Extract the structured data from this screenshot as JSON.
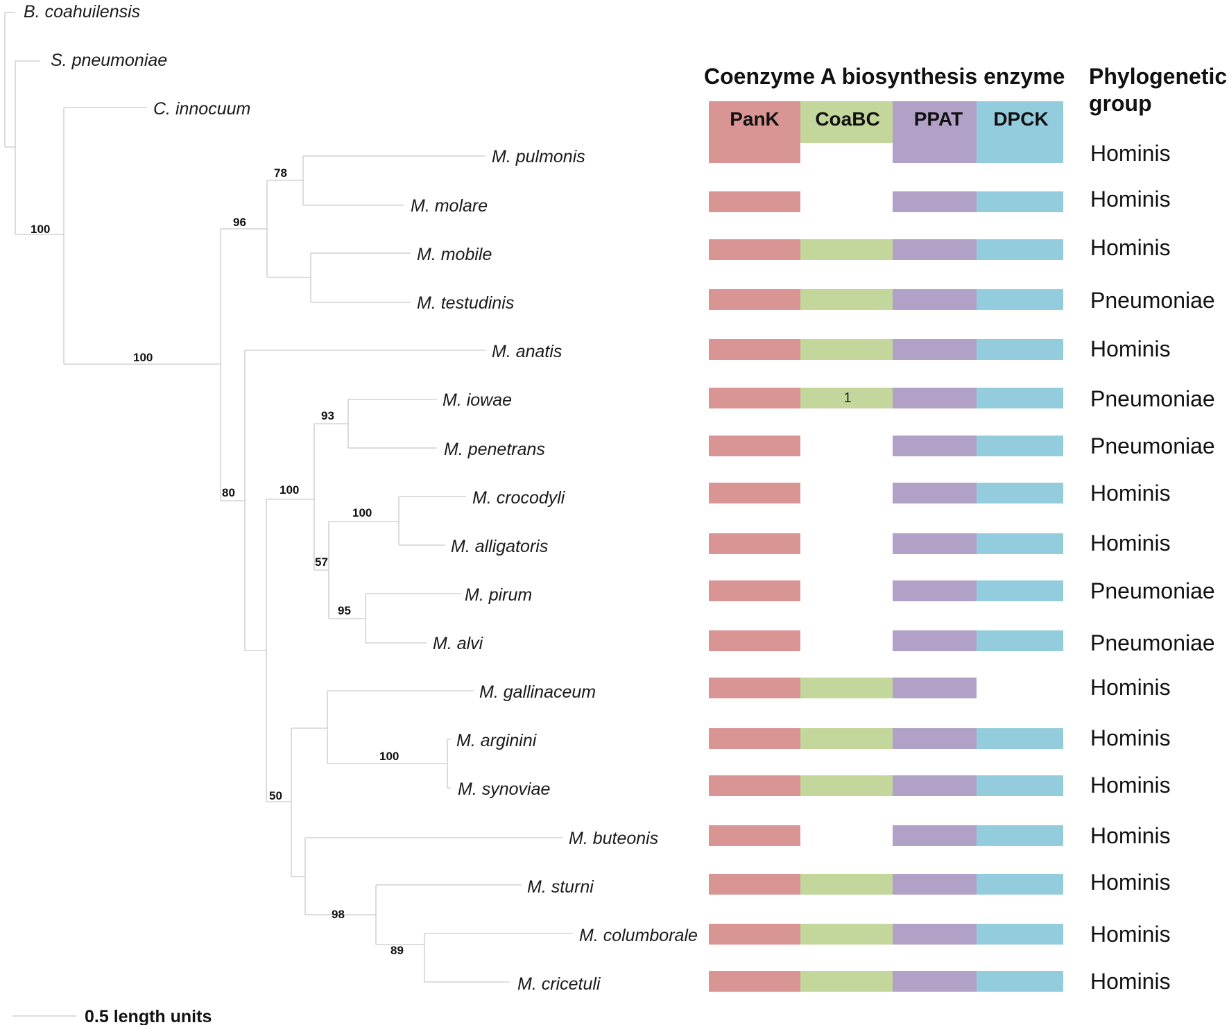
{
  "panel_title": "Coenzyme A biosynthesis enzyme",
  "group_header": [
    "Phylogenetic",
    "group"
  ],
  "enzymes": [
    "PanK",
    "CoaBC",
    "PPAT",
    "DPCK"
  ],
  "enzyme_colors": {
    "PanK": "#d99594",
    "CoaBC": "#c3d69b",
    "PPAT": "#b2a1c7",
    "DPCK": "#93cddd"
  },
  "taxa": [
    {
      "name": "B. coahuilensis"
    },
    {
      "name": "S. pneumoniae"
    },
    {
      "name": "C. innocuum"
    },
    {
      "name": "M. pulmonis",
      "enzymes": [
        true,
        false,
        true,
        true
      ],
      "group": "Hominis"
    },
    {
      "name": "M. molare",
      "enzymes": [
        true,
        false,
        true,
        true
      ],
      "group": "Hominis"
    },
    {
      "name": "M. mobile",
      "enzymes": [
        true,
        true,
        true,
        true
      ],
      "group": "Hominis"
    },
    {
      "name": "M. testudinis",
      "enzymes": [
        true,
        true,
        true,
        true
      ],
      "group": "Pneumoniae"
    },
    {
      "name": "M. anatis",
      "enzymes": [
        true,
        true,
        true,
        true
      ],
      "group": "Hominis"
    },
    {
      "name": "M. iowae",
      "enzymes": [
        true,
        true,
        true,
        true
      ],
      "group": "Pneumoniae",
      "note": "1"
    },
    {
      "name": "M. penetrans",
      "enzymes": [
        true,
        false,
        true,
        true
      ],
      "group": "Pneumoniae"
    },
    {
      "name": "M. crocodyli",
      "enzymes": [
        true,
        false,
        true,
        true
      ],
      "group": "Hominis"
    },
    {
      "name": "M. alligatoris",
      "enzymes": [
        true,
        false,
        true,
        true
      ],
      "group": "Hominis"
    },
    {
      "name": "M. pirum",
      "enzymes": [
        true,
        false,
        true,
        true
      ],
      "group": "Pneumoniae"
    },
    {
      "name": "M. alvi",
      "enzymes": [
        true,
        false,
        true,
        true
      ],
      "group": "Pneumoniae"
    },
    {
      "name": "M. gallinaceum",
      "enzymes": [
        true,
        true,
        true,
        false
      ],
      "group": "Hominis"
    },
    {
      "name": "M. arginini",
      "enzymes": [
        true,
        true,
        true,
        true
      ],
      "group": "Hominis"
    },
    {
      "name": "M. synoviae",
      "enzymes": [
        true,
        true,
        true,
        true
      ],
      "group": "Hominis"
    },
    {
      "name": "M. buteonis",
      "enzymes": [
        true,
        false,
        true,
        true
      ],
      "group": "Hominis"
    },
    {
      "name": "M. sturni",
      "enzymes": [
        true,
        true,
        true,
        true
      ],
      "group": "Hominis"
    },
    {
      "name": "M. columborale",
      "enzymes": [
        true,
        true,
        true,
        true
      ],
      "group": "Hominis"
    },
    {
      "name": "M. cricetuli",
      "enzymes": [
        true,
        true,
        true,
        true
      ],
      "group": "Hominis"
    }
  ],
  "bootstrap_values": [
    "100",
    "100",
    "96",
    "78",
    "80",
    "100",
    "93",
    "57",
    "100",
    "95",
    "50",
    "100",
    "98",
    "89"
  ],
  "scale_label": "0.5 length units"
}
